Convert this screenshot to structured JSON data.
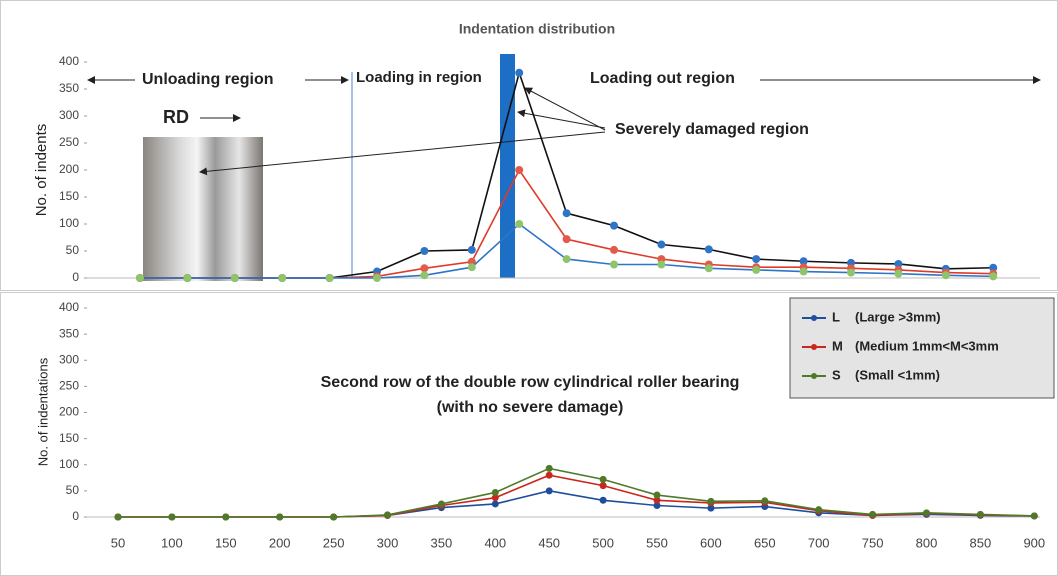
{
  "chart_data": [
    {
      "type": "line",
      "title": "Indentation distribution",
      "ylabel": "No. of indents",
      "ylim": [
        0,
        400
      ],
      "yticks": [
        0,
        50,
        100,
        150,
        200,
        250,
        300,
        350,
        400
      ],
      "annotations": [
        "Unloading region",
        "Loading in region",
        "Loading out region",
        "RD",
        "Severely damaged region"
      ],
      "series": [
        {
          "color": "#111111",
          "marker_color": "#2e75c8",
          "values": [
            0,
            0,
            0,
            0,
            0,
            12,
            50,
            52,
            380,
            120,
            97,
            62,
            53,
            35,
            31,
            28,
            26,
            17,
            19
          ]
        },
        {
          "color": "#e03a2a",
          "marker_color": "#e35a4a",
          "values": [
            0,
            0,
            0,
            0,
            0,
            3,
            18,
            30,
            200,
            72,
            52,
            35,
            25,
            20,
            20,
            18,
            15,
            10,
            8
          ]
        },
        {
          "color": "#2e75c8",
          "marker_color": "#8fc46a",
          "values": [
            0,
            0,
            0,
            0,
            0,
            0,
            5,
            20,
            100,
            35,
            25,
            25,
            18,
            15,
            12,
            10,
            8,
            5,
            3
          ]
        }
      ]
    },
    {
      "type": "line",
      "ylabel": "No. of indentations",
      "ylim": [
        0,
        400
      ],
      "yticks": [
        0,
        50,
        100,
        150,
        200,
        250,
        300,
        350,
        400
      ],
      "categories": [
        "50",
        "100",
        "150",
        "200",
        "250",
        "300",
        "350",
        "400",
        "450",
        "500",
        "550",
        "600",
        "650",
        "700",
        "750",
        "800",
        "850",
        "900"
      ],
      "annotations": [
        "Second row of the double row cylindrical roller bearing",
        "(with no severe damage)"
      ],
      "series": [
        {
          "name": "L",
          "description": "(Large >3mm)",
          "color": "#1f4e9c",
          "values": [
            0,
            0,
            0,
            0,
            0,
            3,
            18,
            25,
            50,
            32,
            22,
            17,
            20,
            8,
            3,
            5,
            3,
            2
          ]
        },
        {
          "name": "M",
          "description": "(Medium 1mm<M<3mm",
          "color": "#c8281e",
          "values": [
            0,
            0,
            0,
            0,
            0,
            3,
            22,
            37,
            80,
            60,
            32,
            27,
            28,
            12,
            3,
            7,
            4,
            2
          ]
        },
        {
          "name": "S",
          "description": "(Small  <1mm)",
          "color": "#4f7a2a",
          "values": [
            0,
            0,
            0,
            0,
            0,
            4,
            25,
            47,
            93,
            72,
            42,
            30,
            31,
            14,
            5,
            8,
            5,
            2
          ]
        }
      ]
    }
  ]
}
